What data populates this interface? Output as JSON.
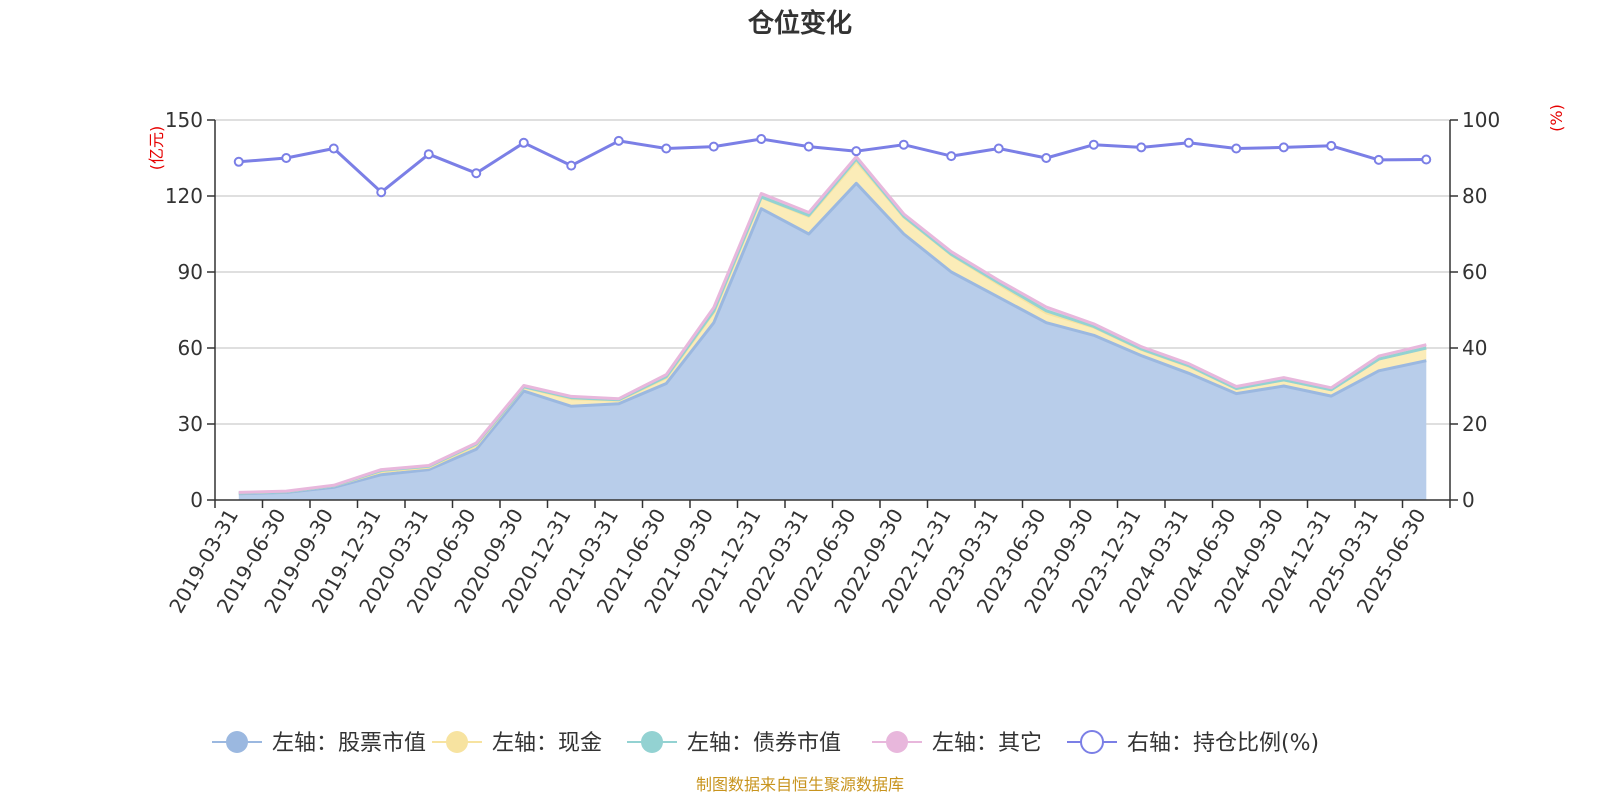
{
  "chart_data": {
    "type": "area",
    "title": "仓位变化",
    "left_axis": {
      "unit": "(亿元)",
      "ylim": [
        0,
        150
      ],
      "ticks": [
        "0",
        "30",
        "60",
        "90",
        "120",
        "150"
      ]
    },
    "right_axis": {
      "unit": "(%)",
      "ylim": [
        0,
        100
      ],
      "ticks": [
        "0",
        "20",
        "40",
        "60",
        "80",
        "100"
      ]
    },
    "categories": [
      "2019-03-31",
      "2019-06-30",
      "2019-09-30",
      "2019-12-31",
      "2020-03-31",
      "2020-06-30",
      "2020-09-30",
      "2020-12-31",
      "2021-03-31",
      "2021-06-30",
      "2021-09-30",
      "2021-12-31",
      "2022-03-31",
      "2022-06-30",
      "2022-09-30",
      "2022-12-31",
      "2023-03-31",
      "2023-06-30",
      "2023-09-30",
      "2023-12-31",
      "2024-03-31",
      "2024-06-30",
      "2024-09-30",
      "2024-12-31",
      "2025-03-31",
      "2025-06-30"
    ],
    "series": [
      {
        "name": "左轴：股票市值",
        "axis": "left",
        "stacked": true,
        "color": "#9bb8e0",
        "fill": "#b8cdea",
        "values": [
          2.5,
          3,
          5,
          10,
          12,
          20,
          43,
          37,
          38,
          46,
          70,
          115,
          105,
          125,
          105,
          90,
          80,
          70,
          65,
          57,
          50,
          42,
          45,
          41,
          51,
          55
        ]
      },
      {
        "name": "左轴：现金",
        "axis": "left",
        "stacked": true,
        "color": "#f7e3a0",
        "fill": "#fbecb8",
        "values": [
          0.3,
          0.3,
          0.6,
          1.3,
          0.9,
          1.6,
          1.6,
          3.0,
          1.4,
          2.3,
          4.2,
          4.5,
          7.0,
          8.8,
          6.7,
          6.8,
          5.2,
          3.9,
          3.2,
          2.4,
          2.8,
          2.0,
          2.4,
          2.5,
          4.6,
          5.0
        ]
      },
      {
        "name": "左轴：债券市值",
        "axis": "left",
        "stacked": true,
        "color": "#93d2d2",
        "fill": "#a9dcdc",
        "values": [
          0,
          0,
          0,
          0.4,
          0.4,
          0.5,
          0.1,
          0.4,
          0.2,
          0.4,
          0.4,
          0.1,
          0.4,
          0.8,
          0.3,
          0.2,
          0.5,
          0.8,
          0.3,
          0.2,
          0.2,
          0,
          0,
          0,
          0,
          0
        ]
      },
      {
        "name": "左轴：其它",
        "axis": "left",
        "stacked": true,
        "color": "#e8b7dc",
        "fill": "#f0c8e6",
        "values": [
          0.2,
          0.2,
          0.2,
          0.3,
          0.3,
          0.4,
          0.5,
          0.5,
          0.4,
          0.8,
          1.4,
          1.4,
          1.1,
          0.9,
          0.9,
          1.0,
          1.0,
          1.5,
          1.0,
          0.9,
          0.8,
          0.8,
          0.9,
          0.8,
          1.2,
          1.3
        ]
      },
      {
        "name": "右轴：持仓比例(%)",
        "axis": "right",
        "stacked": false,
        "color": "#7b7fe6",
        "values": [
          89,
          90,
          92.5,
          81,
          91,
          86,
          94,
          88,
          94.5,
          92.5,
          93,
          95,
          93,
          91.8,
          93.5,
          90.5,
          92.5,
          90,
          93.5,
          92.8,
          94,
          92.5,
          92.8,
          93.2,
          89.5,
          89.6
        ]
      }
    ],
    "grid": true,
    "legend": "bottom"
  },
  "source_text": "制图数据来自恒生聚源数据库"
}
